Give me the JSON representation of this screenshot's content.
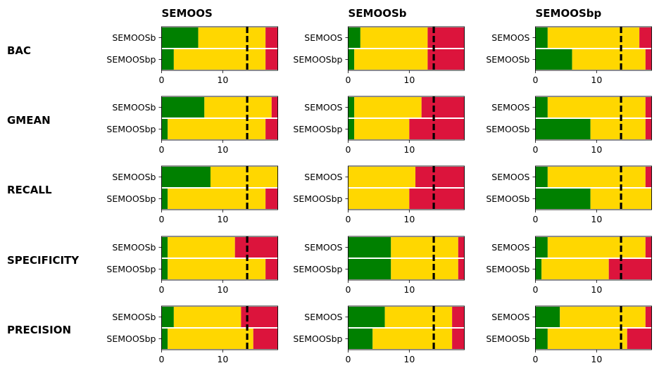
{
  "colors": {
    "win": "#008000",
    "tie": "#FFD700",
    "loss": "#DC143C",
    "critical_line": "#000000"
  },
  "chart_data": {
    "type": "bar",
    "orientation": "horizontal",
    "stacked": true,
    "xlim": [
      0,
      19
    ],
    "xticks": [
      0,
      10
    ],
    "critical_value": 14,
    "columns": [
      "SEMOOS",
      "SEMOOSb",
      "SEMOOSbp"
    ],
    "rows": [
      "BAC",
      "GMEAN",
      "RECALL",
      "SPECIFICITY",
      "PRECISION"
    ],
    "panels": [
      [
        {
          "labels": [
            "SEMOOSb",
            "SEMOOSbp"
          ],
          "values": [
            [
              6,
              11,
              2
            ],
            [
              2,
              15,
              2
            ]
          ]
        },
        {
          "labels": [
            "SEMOOS",
            "SEMOOSbp"
          ],
          "values": [
            [
              2,
              11,
              6
            ],
            [
              1,
              12,
              6
            ]
          ]
        },
        {
          "labels": [
            "SEMOOS",
            "SEMOOSb"
          ],
          "values": [
            [
              2,
              15,
              2
            ],
            [
              6,
              12,
              1
            ]
          ]
        }
      ],
      [
        {
          "labels": [
            "SEMOOSb",
            "SEMOOSbp"
          ],
          "values": [
            [
              7,
              11,
              1
            ],
            [
              1,
              16,
              2
            ]
          ]
        },
        {
          "labels": [
            "SEMOOS",
            "SEMOOSbp"
          ],
          "values": [
            [
              1,
              11,
              7
            ],
            [
              1,
              9,
              9
            ]
          ]
        },
        {
          "labels": [
            "SEMOOS",
            "SEMOOSb"
          ],
          "values": [
            [
              2,
              16,
              1
            ],
            [
              9,
              9,
              1
            ]
          ]
        }
      ],
      [
        {
          "labels": [
            "SEMOOSb",
            "SEMOOSbp"
          ],
          "values": [
            [
              8,
              11,
              0
            ],
            [
              1,
              16,
              2
            ]
          ]
        },
        {
          "labels": [
            "SEMOOS",
            "SEMOOSbp"
          ],
          "values": [
            [
              0,
              11,
              8
            ],
            [
              0,
              10,
              9
            ]
          ]
        },
        {
          "labels": [
            "SEMOOS",
            "SEMOOSb"
          ],
          "values": [
            [
              2,
              16,
              1
            ],
            [
              9,
              10,
              0
            ]
          ]
        }
      ],
      [
        {
          "labels": [
            "SEMOOSb",
            "SEMOOSbp"
          ],
          "values": [
            [
              1,
              11,
              7
            ],
            [
              1,
              16,
              2
            ]
          ]
        },
        {
          "labels": [
            "SEMOOS",
            "SEMOOSbp"
          ],
          "values": [
            [
              7,
              11,
              1
            ],
            [
              7,
              11,
              1
            ]
          ]
        },
        {
          "labels": [
            "SEMOOS",
            "SEMOOSb"
          ],
          "values": [
            [
              2,
              16,
              1
            ],
            [
              1,
              11,
              7
            ]
          ]
        }
      ],
      [
        {
          "labels": [
            "SEMOOSb",
            "SEMOOSbp"
          ],
          "values": [
            [
              2,
              11,
              6
            ],
            [
              1,
              14,
              4
            ]
          ]
        },
        {
          "labels": [
            "SEMOOS",
            "SEMOOSbp"
          ],
          "values": [
            [
              6,
              11,
              2
            ],
            [
              4,
              13,
              2
            ]
          ]
        },
        {
          "labels": [
            "SEMOOS",
            "SEMOOSb"
          ],
          "values": [
            [
              4,
              14,
              1
            ],
            [
              2,
              13,
              4
            ]
          ]
        }
      ]
    ]
  }
}
